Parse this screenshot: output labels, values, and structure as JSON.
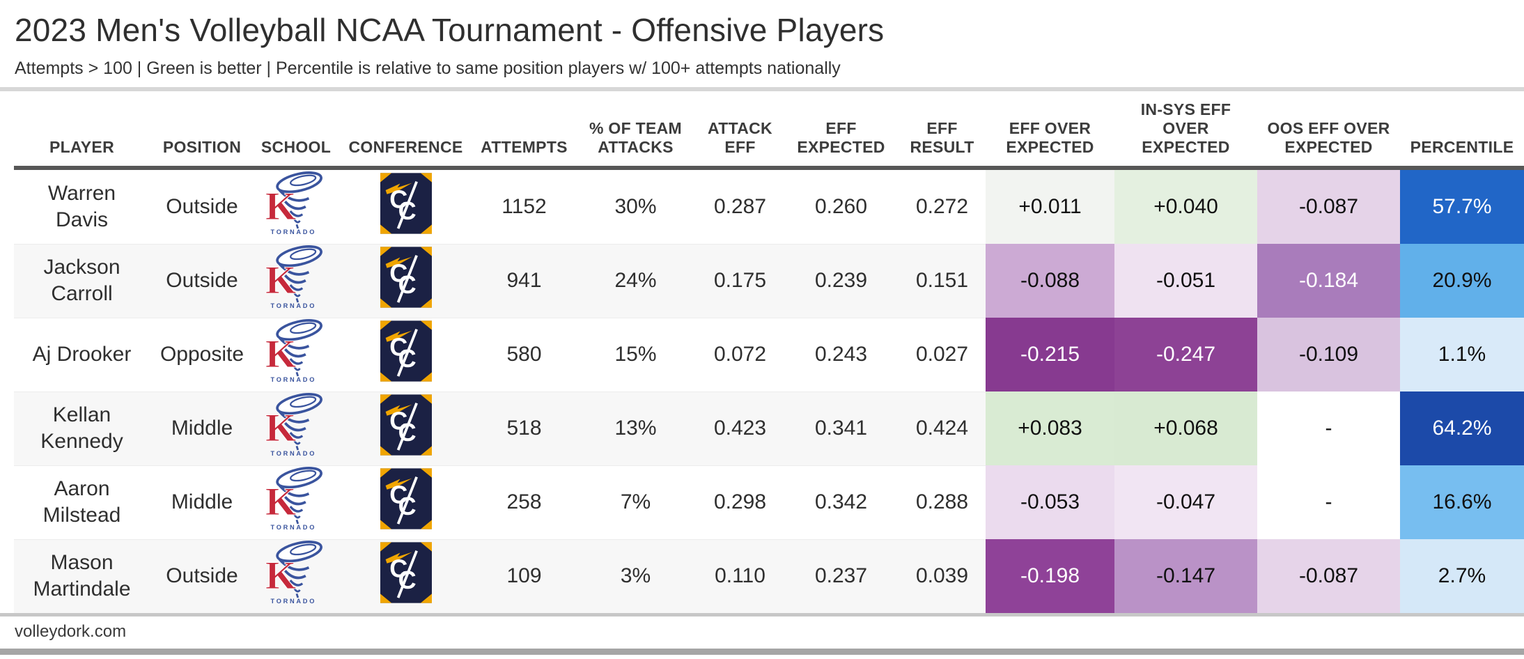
{
  "header": {
    "title": "2023 Men's Volleyball NCAA Tournament - Offensive Players",
    "subtitle": "Attempts > 100 | Green is better | Percentile is relative to same position players w/ 100+ attempts nationally"
  },
  "footer": {
    "source": "volleydork.com"
  },
  "icons": {
    "school_logo": "king-tornado-logo",
    "conference_logo": "conference-carolinas-logo",
    "school_logo_text": "TORNADO",
    "school_logo_letter": "K",
    "conference_logo_letters": "CC"
  },
  "brand_colors": {
    "school_red": "#c6293b",
    "school_blue": "#3a549e",
    "conference_navy": "#1b2144",
    "conference_gold": "#f0a500"
  },
  "table": {
    "columns": [
      {
        "key": "player",
        "label": "PLAYER"
      },
      {
        "key": "position",
        "label": "POSITION"
      },
      {
        "key": "school",
        "label": "SCHOOL"
      },
      {
        "key": "conference",
        "label": "CONFERENCE"
      },
      {
        "key": "attempts",
        "label": "ATTEMPTS"
      },
      {
        "key": "team-attacks-pct",
        "label": "% OF TEAM\nATTACKS"
      },
      {
        "key": "attack-eff",
        "label": "ATTACK\nEFF"
      },
      {
        "key": "eff-expected",
        "label": "EFF\nEXPECTED"
      },
      {
        "key": "eff-result",
        "label": "EFF\nRESULT"
      },
      {
        "key": "eff-over-expected",
        "label": "EFF OVER\nEXPECTED"
      },
      {
        "key": "in-sys-eff-over-expected",
        "label": "IN-SYS EFF\nOVER\nEXPECTED"
      },
      {
        "key": "oos-eff-over-expected",
        "label": "OOS EFF OVER\nEXPECTED"
      },
      {
        "key": "percentile",
        "label": "PERCENTILE"
      }
    ],
    "rows": [
      {
        "player": "Warren\nDavis",
        "position": "Outside",
        "attempts": "1152",
        "team_attacks_pct": "30%",
        "attack_eff": "0.287",
        "eff_expected": "0.260",
        "eff_result": "0.272",
        "eff_over_expected": {
          "value": "+0.011",
          "bg": "#f2f4f1",
          "fg": "#111111"
        },
        "in_sys_eff_over_expected": {
          "value": "+0.040",
          "bg": "#e4f0e0",
          "fg": "#111111"
        },
        "oos_eff_over_expected": {
          "value": "-0.087",
          "bg": "#e5d3e8",
          "fg": "#111111"
        },
        "percentile": {
          "value": "57.7%",
          "bg": "#2166c7",
          "fg": "#ffffff"
        }
      },
      {
        "player": "Jackson\nCarroll",
        "position": "Outside",
        "attempts": "941",
        "team_attacks_pct": "24%",
        "attack_eff": "0.175",
        "eff_expected": "0.239",
        "eff_result": "0.151",
        "eff_over_expected": {
          "value": "-0.088",
          "bg": "#ccaad4",
          "fg": "#111111"
        },
        "in_sys_eff_over_expected": {
          "value": "-0.051",
          "bg": "#efe2f1",
          "fg": "#111111"
        },
        "oos_eff_over_expected": {
          "value": "-0.184",
          "bg": "#a97cbb",
          "fg": "#ffffff"
        },
        "percentile": {
          "value": "20.9%",
          "bg": "#61b0ea",
          "fg": "#111111"
        }
      },
      {
        "player": "Aj Drooker",
        "position": "Opposite",
        "attempts": "580",
        "team_attacks_pct": "15%",
        "attack_eff": "0.072",
        "eff_expected": "0.243",
        "eff_result": "0.027",
        "eff_over_expected": {
          "value": "-0.215",
          "bg": "#873a90",
          "fg": "#ffffff"
        },
        "in_sys_eff_over_expected": {
          "value": "-0.247",
          "bg": "#8d4295",
          "fg": "#ffffff"
        },
        "oos_eff_over_expected": {
          "value": "-0.109",
          "bg": "#d9c3df",
          "fg": "#111111"
        },
        "percentile": {
          "value": "1.1%",
          "bg": "#d9eaf9",
          "fg": "#111111"
        }
      },
      {
        "player": "Kellan\nKennedy",
        "position": "Middle",
        "attempts": "518",
        "team_attacks_pct": "13%",
        "attack_eff": "0.423",
        "eff_expected": "0.341",
        "eff_result": "0.424",
        "eff_over_expected": {
          "value": "+0.083",
          "bg": "#d9ebd3",
          "fg": "#111111"
        },
        "in_sys_eff_over_expected": {
          "value": "+0.068",
          "bg": "#d8ead2",
          "fg": "#111111"
        },
        "oos_eff_over_expected": {
          "value": "-",
          "bg": "#ffffff",
          "fg": "#111111"
        },
        "percentile": {
          "value": "64.2%",
          "bg": "#1c4aa9",
          "fg": "#ffffff"
        }
      },
      {
        "player": "Aaron\nMilstead",
        "position": "Middle",
        "attempts": "258",
        "team_attacks_pct": "7%",
        "attack_eff": "0.298",
        "eff_expected": "0.342",
        "eff_result": "0.288",
        "eff_over_expected": {
          "value": "-0.053",
          "bg": "#ebdbee",
          "fg": "#111111"
        },
        "in_sys_eff_over_expected": {
          "value": "-0.047",
          "bg": "#f1e5f3",
          "fg": "#111111"
        },
        "oos_eff_over_expected": {
          "value": "-",
          "bg": "#ffffff",
          "fg": "#111111"
        },
        "percentile": {
          "value": "16.6%",
          "bg": "#77bef0",
          "fg": "#111111"
        }
      },
      {
        "player": "Mason\nMartindale",
        "position": "Outside",
        "attempts": "109",
        "team_attacks_pct": "3%",
        "attack_eff": "0.110",
        "eff_expected": "0.237",
        "eff_result": "0.039",
        "eff_over_expected": {
          "value": "-0.198",
          "bg": "#8f4298",
          "fg": "#ffffff"
        },
        "in_sys_eff_over_expected": {
          "value": "-0.147",
          "bg": "#ba92c7",
          "fg": "#111111"
        },
        "oos_eff_over_expected": {
          "value": "-0.087",
          "bg": "#e6d4e9",
          "fg": "#111111"
        },
        "percentile": {
          "value": "2.7%",
          "bg": "#d5e8f8",
          "fg": "#111111"
        }
      }
    ]
  }
}
